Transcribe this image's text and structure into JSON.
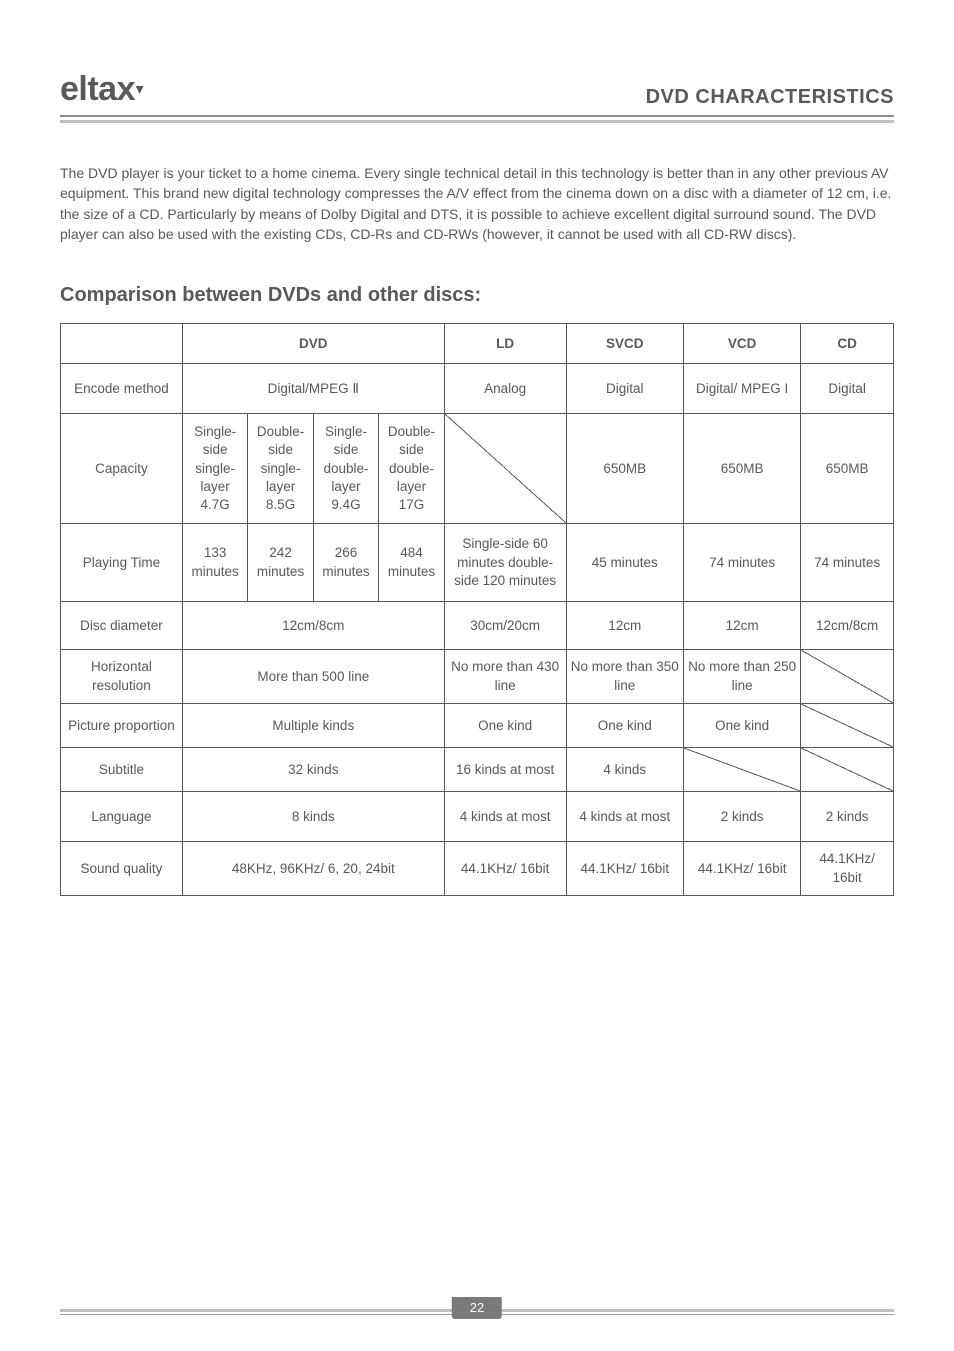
{
  "header": {
    "logo": "eltax",
    "title": "DVD CHARACTERISTICS"
  },
  "intro": "The DVD player is your ticket to a home cinema. Every single technical detail in this technology is better than in any other previous AV equipment. This brand new digital technology compresses the A/V effect from the cinema down on a disc with a diameter of 12 cm, i.e. the size of a CD. Particularly by means of Dolby Digital and DTS, it is possible to achieve excellent digital surround sound. The DVD player can also be used with the existing CDs, CD-Rs and CD-RWs (however, it cannot be used with all CD-RW discs).",
  "section_title": "Comparison between DVDs and other discs:",
  "table": {
    "head": {
      "dvd": "DVD",
      "ld": "LD",
      "svcd": "SVCD",
      "vcd": "VCD",
      "cd": "CD"
    },
    "rows": {
      "encode": {
        "label": "Encode method",
        "dvd": "Digital/MPEG Ⅱ",
        "ld": "Analog",
        "svcd": "Digital",
        "vcd": "Digital/ MPEG I",
        "cd": "Digital"
      },
      "capacity": {
        "label": "Capacity",
        "dvd_a": "Single-side single-layer 4.7G",
        "dvd_b": "Double-side single-layer 8.5G",
        "dvd_c": "Single-side double-layer 9.4G",
        "dvd_d": "Double-side double-layer 17G",
        "svcd": "650MB",
        "vcd": "650MB",
        "cd": "650MB"
      },
      "playing": {
        "label": "Playing Time",
        "dvd_a": "133 minutes",
        "dvd_b": "242 minutes",
        "dvd_c": "266 minutes",
        "dvd_d": "484 minutes",
        "ld": "Single-side 60 minutes double-side 120 minutes",
        "svcd": "45 minutes",
        "vcd": "74 minutes",
        "cd": "74 minutes"
      },
      "diameter": {
        "label": "Disc diameter",
        "dvd": "12cm/8cm",
        "ld": "30cm/20cm",
        "svcd": "12cm",
        "vcd": "12cm",
        "cd": "12cm/8cm"
      },
      "hres": {
        "label": "Horizontal resolution",
        "dvd": "More than 500 line",
        "ld": "No more than 430 line",
        "svcd": "No more than 350 line",
        "vcd": "No more than 250 line"
      },
      "pp": {
        "label": "Picture proportion",
        "dvd": "Multiple kinds",
        "ld": "One kind",
        "svcd": "One kind",
        "vcd": "One kind"
      },
      "subtitle": {
        "label": "Subtitle",
        "dvd": "32 kinds",
        "ld": "16 kinds at most",
        "svcd": "4 kinds"
      },
      "language": {
        "label": "Language",
        "dvd": "8 kinds",
        "ld": "4 kinds at most",
        "svcd": "4 kinds at most",
        "vcd": "2 kinds",
        "cd": "2 kinds"
      },
      "sound": {
        "label": "Sound  quality",
        "dvd": "48KHz, 96KHz/ 6, 20, 24bit",
        "ld": "44.1KHz/ 16bit",
        "svcd": "44.1KHz/ 16bit",
        "vcd": "44.1KHz/ 16bit",
        "cd": "44.1KHz/ 16bit"
      }
    }
  },
  "page_number": "22",
  "theme": {
    "text_color": "#595959",
    "border_color": "#595959",
    "accent_gray": "#c0c0c0",
    "page_bg": "#ffffff",
    "pagenum_bg": "#7a7a7a"
  }
}
